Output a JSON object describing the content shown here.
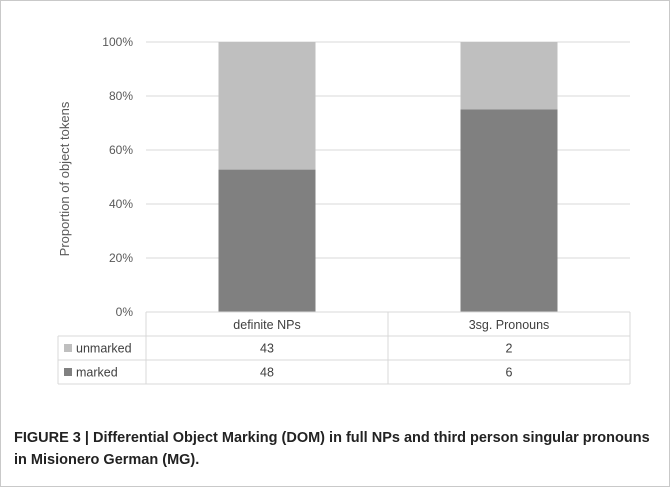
{
  "chart_data": {
    "type": "bar",
    "stacked": true,
    "normalized": true,
    "categories": [
      "definite NPs",
      "3sg. Pronouns"
    ],
    "series": [
      {
        "name": "unmarked",
        "values": [
          43,
          2
        ],
        "color": "#bfbfbf"
      },
      {
        "name": "marked",
        "values": [
          48,
          6
        ],
        "color": "#808080"
      }
    ],
    "ylabel": "Proportion of object tokens",
    "ylim": [
      0,
      100
    ],
    "yticks": [
      "0%",
      "20%",
      "40%",
      "60%",
      "80%",
      "100%"
    ],
    "grid": true,
    "legend": "data-table"
  },
  "caption": "FIGURE 3 | Differential Object Marking (DOM) in full NPs and third person singular pronouns in Misionero German (MG)."
}
